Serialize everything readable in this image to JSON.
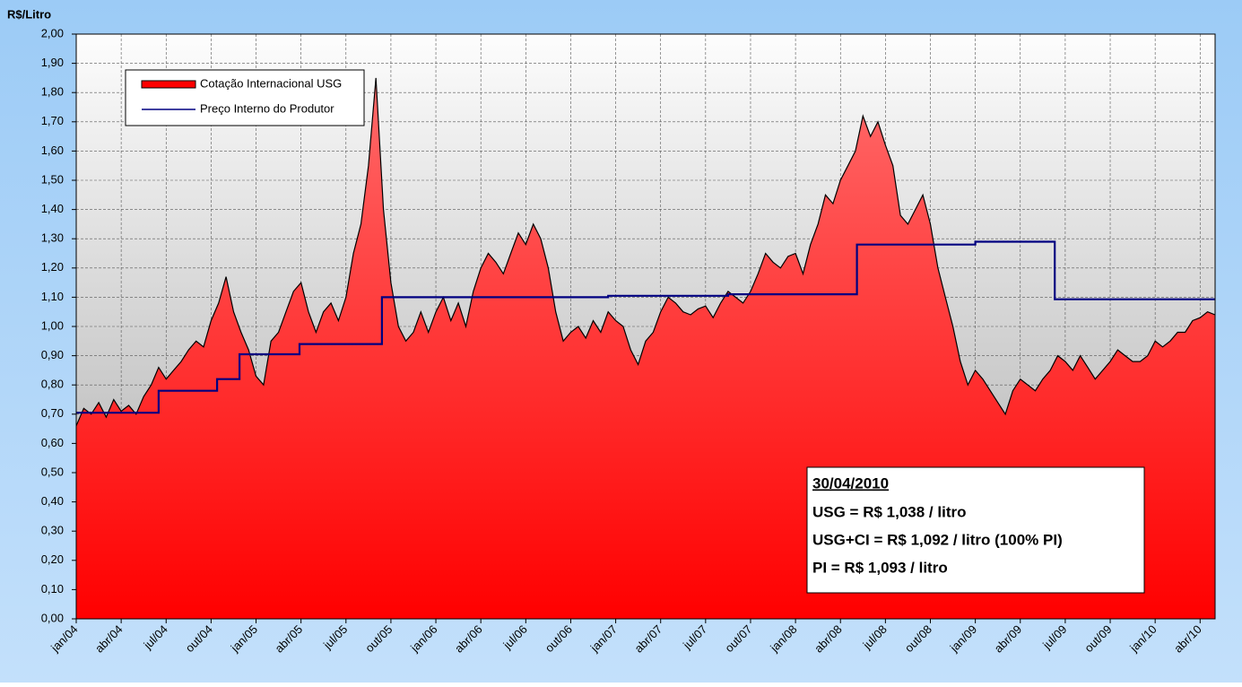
{
  "chart_data": {
    "type": "area_line",
    "ylabel": "R$/Litro",
    "ylim": [
      0,
      2
    ],
    "yticks": [
      {
        "value": 0,
        "label": "0,00"
      },
      {
        "value": 0.1,
        "label": "0,10"
      },
      {
        "value": 0.2,
        "label": "0,20"
      },
      {
        "value": 0.3,
        "label": "0,30"
      },
      {
        "value": 0.4,
        "label": "0,40"
      },
      {
        "value": 0.5,
        "label": "0,50"
      },
      {
        "value": 0.6,
        "label": "0,60"
      },
      {
        "value": 0.7,
        "label": "0,70"
      },
      {
        "value": 0.8,
        "label": "0,80"
      },
      {
        "value": 0.9,
        "label": "0,90"
      },
      {
        "value": 1,
        "label": "1,00"
      },
      {
        "value": 1.1,
        "label": "1,10"
      },
      {
        "value": 1.2,
        "label": "1,20"
      },
      {
        "value": 1.3,
        "label": "1,30"
      },
      {
        "value": 1.4,
        "label": "1,40"
      },
      {
        "value": 1.5,
        "label": "1,50"
      },
      {
        "value": 1.6,
        "label": "1,60"
      },
      {
        "value": 1.7,
        "label": "1,70"
      },
      {
        "value": 1.8,
        "label": "1,80"
      },
      {
        "value": 1.9,
        "label": "1,90"
      },
      {
        "value": 2,
        "label": "2,00"
      }
    ],
    "xlim": [
      0,
      76
    ],
    "xticks": [
      {
        "value": 0,
        "label": "jan/04"
      },
      {
        "value": 3,
        "label": "abr/04"
      },
      {
        "value": 6,
        "label": "jul/04"
      },
      {
        "value": 9,
        "label": "out/04"
      },
      {
        "value": 12,
        "label": "jan/05"
      },
      {
        "value": 15,
        "label": "abr/05"
      },
      {
        "value": 18,
        "label": "jul/05"
      },
      {
        "value": 21,
        "label": "out/05"
      },
      {
        "value": 24,
        "label": "jan/06"
      },
      {
        "value": 27,
        "label": "abr/06"
      },
      {
        "value": 30,
        "label": "jul/06"
      },
      {
        "value": 33,
        "label": "out/06"
      },
      {
        "value": 36,
        "label": "jan/07"
      },
      {
        "value": 39,
        "label": "abr/07"
      },
      {
        "value": 42,
        "label": "jul/07"
      },
      {
        "value": 45,
        "label": "out/07"
      },
      {
        "value": 48,
        "label": "jan/08"
      },
      {
        "value": 51,
        "label": "abr/08"
      },
      {
        "value": 54,
        "label": "jul/08"
      },
      {
        "value": 57,
        "label": "out/08"
      },
      {
        "value": 60,
        "label": "jan/09"
      },
      {
        "value": 63,
        "label": "abr/09"
      },
      {
        "value": 66,
        "label": "jul/09"
      },
      {
        "value": 69,
        "label": "out/09"
      },
      {
        "value": 72,
        "label": "jan/10"
      },
      {
        "value": 75,
        "label": "abr/10"
      }
    ],
    "grid": true,
    "legend": "top-left",
    "series": [
      {
        "name": "Cotação Internacional USG",
        "color": "#ff0000",
        "kind": "area",
        "x": [
          0,
          0.5,
          1,
          1.5,
          2,
          2.5,
          3,
          3.5,
          4,
          4.5,
          5,
          5.5,
          6,
          6.5,
          7,
          7.5,
          8,
          8.5,
          9,
          9.5,
          10,
          10.5,
          11,
          11.5,
          12,
          12.5,
          13,
          13.5,
          14,
          14.5,
          15,
          15.5,
          16,
          16.5,
          17,
          17.5,
          18,
          18.5,
          19,
          19.5,
          20,
          20.5,
          21,
          21.5,
          22,
          22.5,
          23,
          23.5,
          24,
          24.5,
          25,
          25.5,
          26,
          26.5,
          27,
          27.5,
          28,
          28.5,
          29,
          29.5,
          30,
          30.5,
          31,
          31.5,
          32,
          32.5,
          33,
          33.5,
          34,
          34.5,
          35,
          35.5,
          36,
          36.5,
          37,
          37.5,
          38,
          38.5,
          39,
          39.5,
          40,
          40.5,
          41,
          41.5,
          42,
          42.5,
          43,
          43.5,
          44,
          44.5,
          45,
          45.5,
          46,
          46.5,
          47,
          47.5,
          48,
          48.5,
          49,
          49.5,
          50,
          50.5,
          51,
          51.5,
          52,
          52.5,
          53,
          53.5,
          54,
          54.5,
          55,
          55.5,
          56,
          56.5,
          57,
          57.5,
          58,
          58.5,
          59,
          59.5,
          60,
          60.5,
          61,
          61.5,
          62,
          62.5,
          63,
          63.5,
          64,
          64.5,
          65,
          65.5,
          66,
          66.5,
          67,
          67.5,
          68,
          68.5,
          69,
          69.5,
          70,
          70.5,
          71,
          71.5,
          72,
          72.5,
          73,
          73.5,
          74,
          74.5,
          75,
          75.5,
          76
        ],
        "values": [
          0.66,
          0.72,
          0.7,
          0.74,
          0.69,
          0.75,
          0.71,
          0.73,
          0.7,
          0.76,
          0.8,
          0.86,
          0.82,
          0.85,
          0.88,
          0.92,
          0.95,
          0.93,
          1.02,
          1.08,
          1.17,
          1.05,
          0.98,
          0.92,
          0.83,
          0.8,
          0.95,
          0.98,
          1.05,
          1.12,
          1.15,
          1.05,
          0.98,
          1.05,
          1.08,
          1.02,
          1.1,
          1.25,
          1.35,
          1.55,
          1.85,
          1.4,
          1.15,
          1.0,
          0.95,
          0.98,
          1.05,
          0.98,
          1.05,
          1.1,
          1.02,
          1.08,
          1.0,
          1.12,
          1.2,
          1.25,
          1.22,
          1.18,
          1.25,
          1.32,
          1.28,
          1.35,
          1.3,
          1.2,
          1.05,
          0.95,
          0.98,
          1.0,
          0.96,
          1.02,
          0.98,
          1.05,
          1.02,
          1.0,
          0.92,
          0.87,
          0.95,
          0.98,
          1.05,
          1.1,
          1.08,
          1.05,
          1.04,
          1.06,
          1.07,
          1.03,
          1.08,
          1.12,
          1.1,
          1.08,
          1.12,
          1.18,
          1.25,
          1.22,
          1.2,
          1.24,
          1.25,
          1.18,
          1.28,
          1.35,
          1.45,
          1.42,
          1.5,
          1.55,
          1.6,
          1.72,
          1.65,
          1.7,
          1.62,
          1.55,
          1.38,
          1.35,
          1.4,
          1.45,
          1.35,
          1.2,
          1.1,
          1.0,
          0.88,
          0.8,
          0.85,
          0.82,
          0.78,
          0.74,
          0.7,
          0.78,
          0.82,
          0.8,
          0.78,
          0.82,
          0.85,
          0.9,
          0.88,
          0.85,
          0.9,
          0.86,
          0.82,
          0.85,
          0.88,
          0.92,
          0.9,
          0.88,
          0.88,
          0.9,
          0.95,
          0.93,
          0.95,
          0.98,
          0.98,
          1.02,
          1.03,
          1.05,
          1.04
        ]
      },
      {
        "name": "Preço Interno do Produtor",
        "color": "#000080",
        "kind": "line",
        "x": [
          0,
          5.5,
          5.5,
          9.4,
          9.4,
          10.9,
          10.9,
          14.9,
          14.9,
          20.4,
          20.4,
          35.5,
          35.5,
          43.5,
          43.5,
          52.1,
          52.1,
          60,
          60,
          65.3,
          65.3,
          76
        ],
        "values": [
          0.705,
          0.705,
          0.78,
          0.78,
          0.82,
          0.82,
          0.905,
          0.905,
          0.94,
          0.94,
          1.1,
          1.1,
          1.105,
          1.105,
          1.11,
          1.11,
          1.28,
          1.28,
          1.29,
          1.29,
          1.093,
          1.093
        ]
      }
    ],
    "annotation": {
      "date": "30/04/2010",
      "lines": [
        "USG = R$ 1,038 / litro",
        "USG+CI = R$ 1,092 / litro (100% PI)",
        "PI = R$ 1,093 / litro"
      ]
    }
  }
}
